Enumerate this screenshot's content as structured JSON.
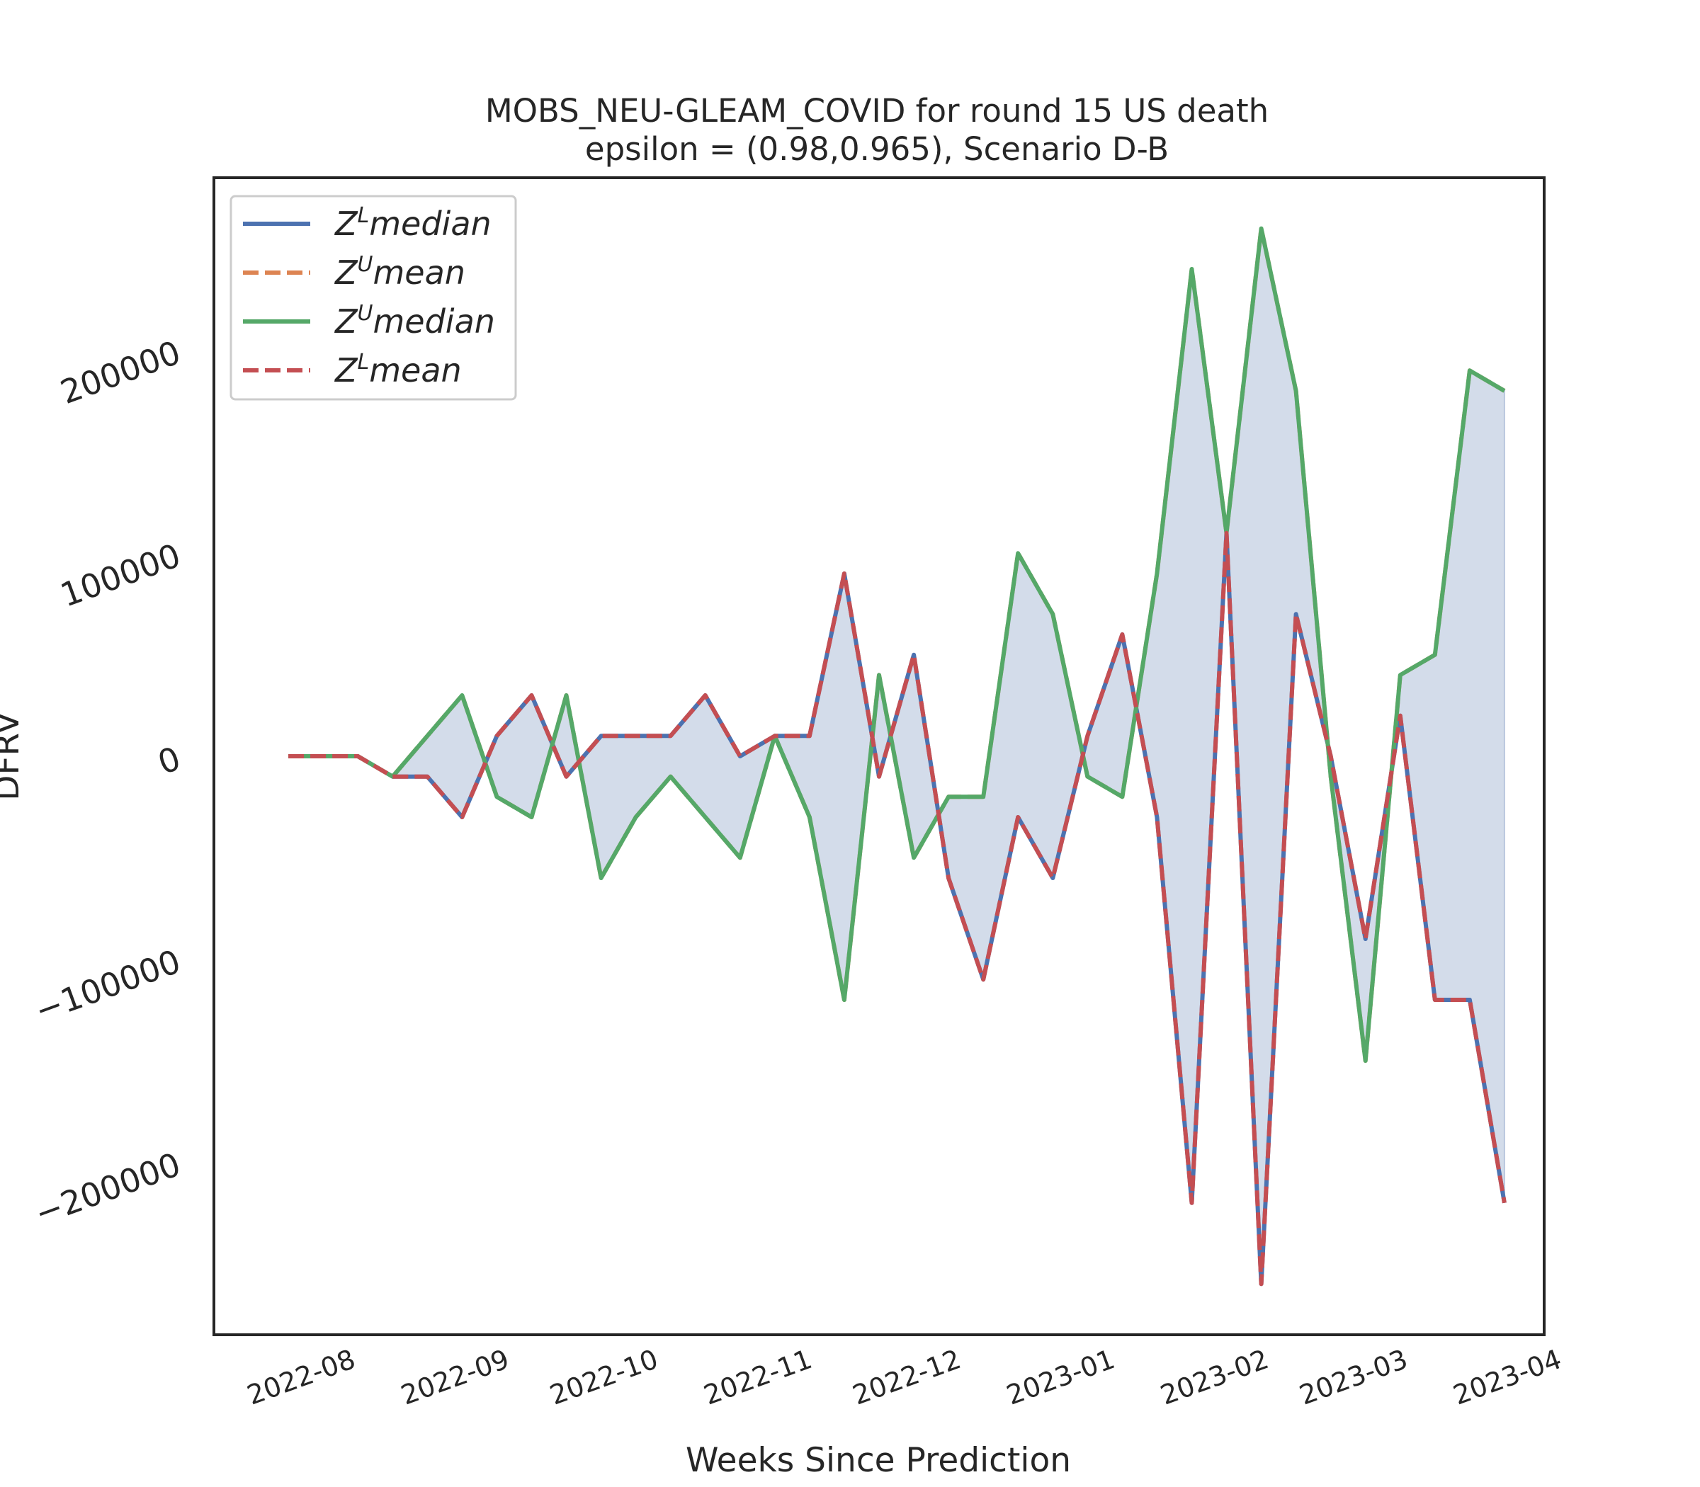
{
  "chart_data": {
    "type": "line",
    "title": "MOBS_NEU-GLEAM_COVID for round 15 US  death",
    "subtitle": "epsilon = (0.98,0.965), Scenario D-B",
    "xlabel": "Weeks Since Prediction",
    "ylabel": "DFRV",
    "x_ticks": [
      "2022-08",
      "2022-09",
      "2022-10",
      "2022-11",
      "2022-12",
      "2023-01",
      "2023-02",
      "2023-03",
      "2023-04"
    ],
    "y_ticks": [
      "−200000",
      "−100000",
      "0",
      "100000",
      "200000"
    ],
    "x": [
      "2022-07-23",
      "2022-07-30",
      "2022-08-06",
      "2022-08-13",
      "2022-08-20",
      "2022-08-27",
      "2022-09-03",
      "2022-09-10",
      "2022-09-17",
      "2022-09-24",
      "2022-10-01",
      "2022-10-08",
      "2022-10-15",
      "2022-10-22",
      "2022-10-29",
      "2022-11-05",
      "2022-11-12",
      "2022-11-19",
      "2022-11-26",
      "2022-12-03",
      "2022-12-10",
      "2022-12-17",
      "2022-12-24",
      "2022-12-31",
      "2023-01-07",
      "2023-01-14",
      "2023-01-21",
      "2023-01-28",
      "2023-02-04",
      "2023-02-11",
      "2023-02-18",
      "2023-02-25",
      "2023-03-04",
      "2023-03-11",
      "2023-03-18",
      "2023-03-25"
    ],
    "xlim": [
      "2022-07-08",
      "2023-04-02"
    ],
    "ylim": [
      -285000,
      285000
    ],
    "grid": false,
    "legend_position": "top-left",
    "fill_between": {
      "lower": "Z^L median",
      "upper": "Z^U median",
      "color": "#d1dae9"
    },
    "series": [
      {
        "name": "median",
        "sup": "L",
        "color": "#4c72b0",
        "dashed": false,
        "values": [
          0,
          0,
          0,
          -10000,
          -10000,
          -30000,
          10000,
          30000,
          -10000,
          10000,
          10000,
          10000,
          30000,
          0,
          10000,
          10000,
          90000,
          -10000,
          50000,
          -60000,
          -110000,
          -30000,
          -60000,
          10000,
          60000,
          -30000,
          -220000,
          110000,
          -260000,
          70000,
          0,
          -90000,
          20000,
          -120000,
          -120000,
          -220000
        ]
      },
      {
        "name": "mean",
        "sup": "U",
        "color": "#dd8452",
        "dashed": true,
        "values": [
          0,
          0,
          0,
          -10000,
          10000,
          30000,
          -20000,
          -30000,
          30000,
          -60000,
          -30000,
          -10000,
          -30000,
          -50000,
          10000,
          -30000,
          -120000,
          40000,
          -50000,
          -20000,
          -20000,
          100000,
          70000,
          -10000,
          -20000,
          90000,
          240000,
          110000,
          260000,
          180000,
          -10000,
          -150000,
          40000,
          50000,
          190000,
          180000
        ]
      },
      {
        "name": "median",
        "sup": "U",
        "color": "#55a868",
        "dashed": false,
        "values": [
          0,
          0,
          0,
          -10000,
          10000,
          30000,
          -20000,
          -30000,
          30000,
          -60000,
          -30000,
          -10000,
          -30000,
          -50000,
          10000,
          -30000,
          -120000,
          40000,
          -50000,
          -20000,
          -20000,
          100000,
          70000,
          -10000,
          -20000,
          90000,
          240000,
          110000,
          260000,
          180000,
          -10000,
          -150000,
          40000,
          50000,
          190000,
          180000
        ]
      },
      {
        "name": "mean",
        "sup": "L",
        "color": "#c44e52",
        "dashed": true,
        "values": [
          0,
          0,
          0,
          -10000,
          -10000,
          -30000,
          10000,
          30000,
          -10000,
          10000,
          10000,
          10000,
          30000,
          0,
          10000,
          10000,
          90000,
          -10000,
          50000,
          -60000,
          -110000,
          -30000,
          -60000,
          10000,
          60000,
          -30000,
          -220000,
          110000,
          -260000,
          70000,
          0,
          -90000,
          20000,
          -120000,
          -120000,
          -220000
        ]
      }
    ]
  }
}
